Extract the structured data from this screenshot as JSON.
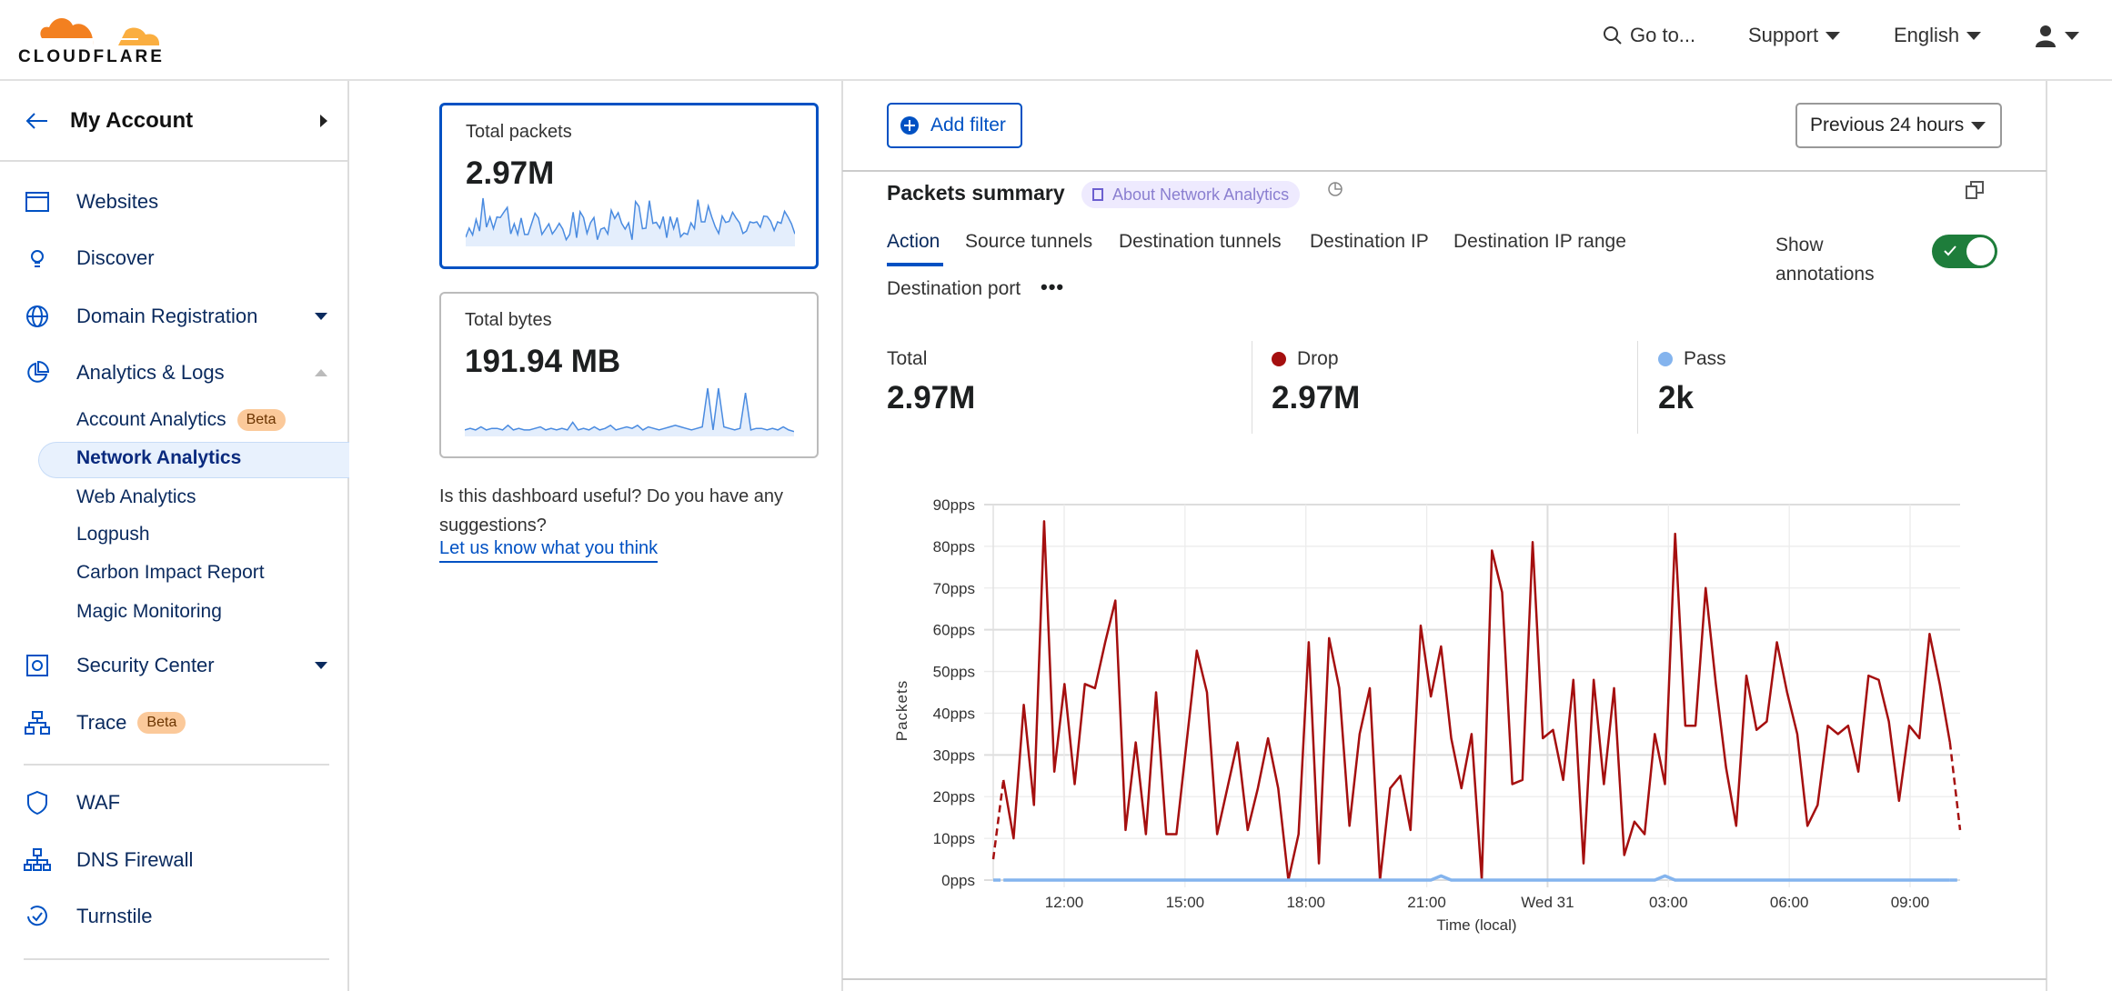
{
  "header": {
    "logo_text": "CLOUDFLARE",
    "goto": "Go to...",
    "support": "Support",
    "language": "English",
    "icons": {
      "search": "search-icon",
      "user": "user-icon"
    }
  },
  "sidebar": {
    "account": "My Account",
    "items": [
      {
        "label": "Websites",
        "icon": "browser-window-icon"
      },
      {
        "label": "Discover",
        "icon": "lightbulb-icon"
      },
      {
        "label": "Domain Registration",
        "icon": "globe-icon"
      },
      {
        "label": "Analytics & Logs",
        "icon": "pie-chart-icon"
      }
    ],
    "sub_items": [
      {
        "label": "Account Analytics",
        "badge": "Beta"
      },
      {
        "label": "Network Analytics",
        "active": true
      },
      {
        "label": "Web Analytics"
      },
      {
        "label": "Logpush"
      },
      {
        "label": "Carbon Impact Report"
      },
      {
        "label": "Magic Monitoring"
      }
    ],
    "items2": [
      {
        "label": "Security Center",
        "icon": "shield-gear-icon"
      },
      {
        "label": "Trace",
        "badge": "Beta",
        "icon": "hierarchy-icon"
      }
    ],
    "items3": [
      {
        "label": "WAF",
        "icon": "shield-icon"
      },
      {
        "label": "DNS Firewall",
        "icon": "network-icon"
      },
      {
        "label": "Turnstile",
        "icon": "turnstile-icon"
      }
    ]
  },
  "cards": [
    {
      "title": "Total packets",
      "value": "2.97M",
      "selected": true
    },
    {
      "title": "Total bytes",
      "value": "191.94 MB",
      "sparkline": [
        3,
        4,
        3,
        5,
        3,
        4,
        4,
        3,
        6,
        3,
        4,
        3,
        3,
        4,
        5,
        3,
        4,
        3,
        4,
        3,
        8,
        3,
        4,
        3,
        5,
        3,
        4,
        6,
        3,
        4,
        5,
        4,
        6,
        3,
        5,
        4,
        3,
        4,
        5,
        6,
        5,
        4,
        3,
        4,
        5,
        30,
        3,
        30,
        5,
        4,
        3,
        4,
        27,
        3,
        4,
        4,
        3,
        4,
        3,
        5,
        3,
        2
      ]
    }
  ],
  "feedback": {
    "text": "Is this dashboard useful? Do you have any suggestions?",
    "link": "Let us know what you think"
  },
  "toolbar": {
    "add_filter": "Add filter",
    "time_range": "Previous 24 hours"
  },
  "summary": {
    "title": "Packets summary",
    "about": "About Network Analytics",
    "tabs": [
      "Action",
      "Source tunnels",
      "Destination tunnels",
      "Destination IP",
      "Destination IP range",
      "Destination port"
    ],
    "active_tab": "Action",
    "show_annotations": "Show annotations",
    "annotations_on": true,
    "stats": [
      {
        "label": "Total",
        "value": "2.97M"
      },
      {
        "label": "Drop",
        "value": "2.97M",
        "color": "#a50f0f"
      },
      {
        "label": "Pass",
        "value": "2k",
        "color": "#84b4ee"
      }
    ]
  },
  "chart_data": {
    "type": "line",
    "xlabel": "Time (local)",
    "ylabel": "Packets",
    "ylim": [
      0,
      90
    ],
    "yticks": [
      "0pps",
      "10pps",
      "20pps",
      "30pps",
      "40pps",
      "50pps",
      "60pps",
      "70pps",
      "80pps",
      "90pps"
    ],
    "xticks": [
      "12:00",
      "15:00",
      "18:00",
      "21:00",
      "Wed 31",
      "03:00",
      "06:00",
      "09:00"
    ],
    "grid": true,
    "series": [
      {
        "name": "Drop",
        "color": "#a50f0f",
        "values": [
          5,
          24,
          10,
          42,
          18,
          86,
          26,
          47,
          23,
          47,
          46,
          57,
          67,
          12,
          33,
          11,
          45,
          11,
          11,
          33,
          55,
          45,
          11,
          22,
          33,
          12,
          22,
          34,
          22,
          0,
          11,
          57,
          4,
          58,
          46,
          13,
          35,
          46,
          0,
          22,
          25,
          12,
          61,
          44,
          56,
          34,
          22,
          35,
          0,
          79,
          69,
          23,
          24,
          81,
          34,
          36,
          24,
          48,
          4,
          48,
          23,
          46,
          6,
          14,
          11,
          35,
          23,
          83,
          37,
          37,
          70,
          47,
          27,
          13,
          49,
          36,
          38,
          57,
          45,
          35,
          13,
          18,
          37,
          35,
          37,
          26,
          49,
          48,
          38,
          19,
          37,
          34,
          59,
          47,
          33,
          12
        ]
      },
      {
        "name": "Pass",
        "color": "#84b4ee",
        "values": [
          0,
          0,
          0,
          0,
          0,
          0,
          0,
          0,
          0,
          0,
          0,
          0,
          0,
          0,
          0,
          0,
          0,
          0,
          0,
          0,
          0,
          0,
          0,
          0,
          0,
          0,
          0,
          0,
          0,
          0,
          0,
          0,
          0,
          0,
          0,
          0,
          0,
          0,
          0,
          0,
          0,
          0,
          0,
          0,
          1,
          0,
          0,
          0,
          0,
          0,
          0,
          0,
          0,
          0,
          0,
          0,
          0,
          0,
          0,
          0,
          0,
          0,
          0,
          0,
          0,
          0,
          1,
          0,
          0,
          0,
          0,
          0,
          0,
          0,
          0,
          0,
          0,
          0,
          0,
          0,
          0,
          0,
          0,
          0,
          0,
          0,
          0,
          0,
          0,
          0,
          0,
          0,
          0,
          0,
          0,
          0
        ]
      }
    ]
  }
}
